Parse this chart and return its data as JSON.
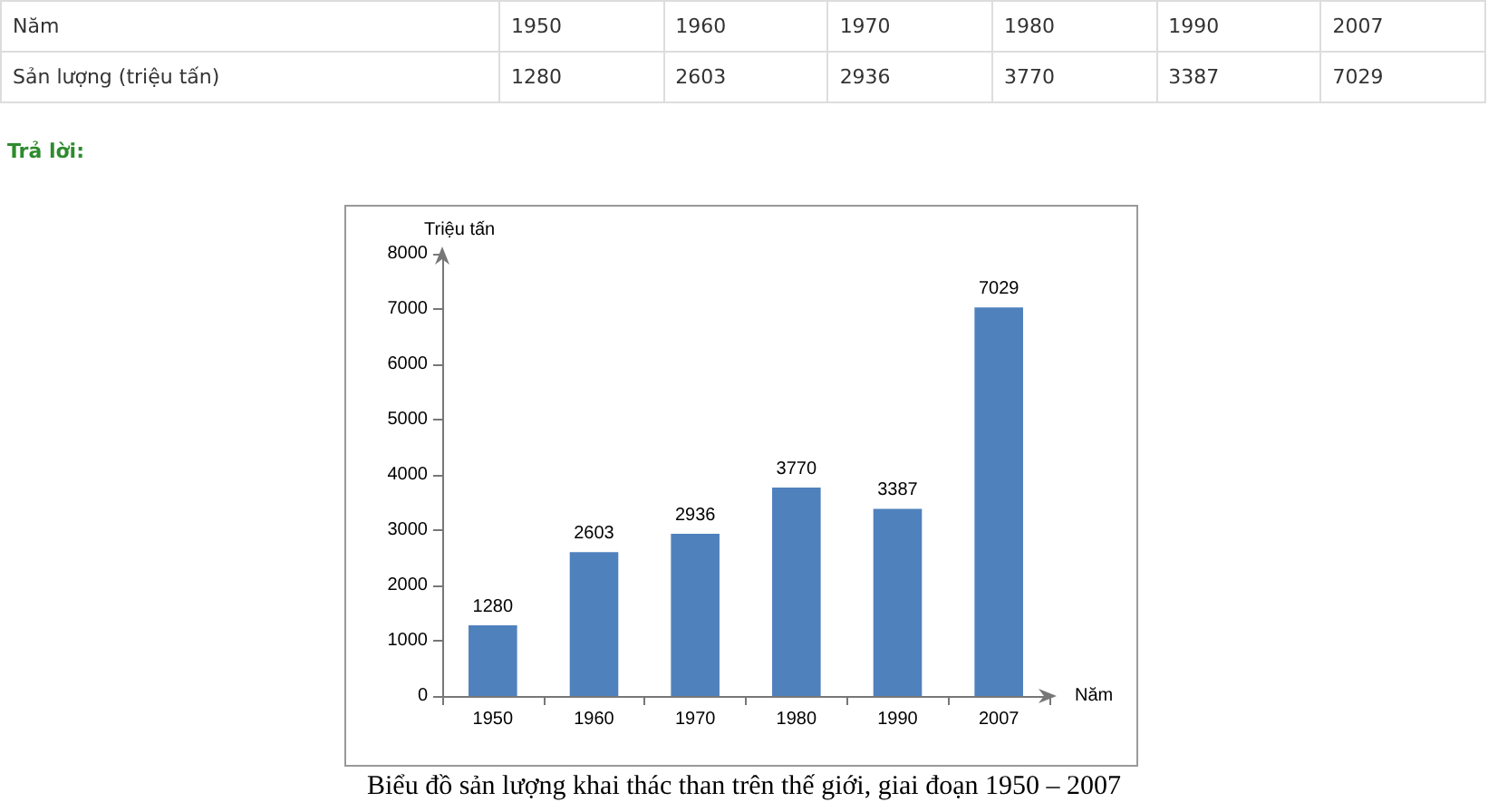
{
  "chart_data": {
    "type": "bar",
    "title": "Biểu đồ sản lượng khai thác than trên thế giới, giai đoạn 1950 – 2007",
    "xlabel": "Năm",
    "ylabel": "Triệu tấn",
    "annotations": [
      "Năm",
      "Sản lượng (triệu tấn)",
      "Trả lời:"
    ],
    "categories": [
      "1950",
      "1960",
      "1970",
      "1980",
      "1990",
      "2007"
    ],
    "values": [
      1280,
      2603,
      2936,
      3770,
      3387,
      7029
    ],
    "color": "#4f81bd",
    "value_labels": [
      "1280",
      "2603",
      "2936",
      "3770",
      "3387",
      "7029"
    ],
    "ylim": [
      0,
      8000
    ],
    "yticks": [
      0,
      1000,
      2000,
      3000,
      4000,
      5000,
      6000,
      7000,
      8000
    ],
    "grid": false
  }
}
